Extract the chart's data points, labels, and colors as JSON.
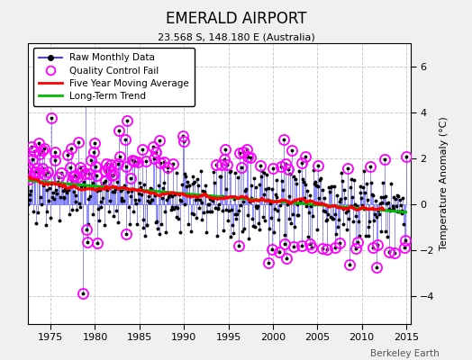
{
  "title": "EMERALD AIRPORT",
  "subtitle": "23.568 S, 148.180 E (Australia)",
  "ylabel": "Temperature Anomaly (°C)",
  "credit": "Berkeley Earth",
  "xlim": [
    1972.5,
    2015.5
  ],
  "ylim": [
    -5.2,
    7.0
  ],
  "yticks": [
    -4,
    -2,
    0,
    2,
    4,
    6
  ],
  "xticks": [
    1975,
    1980,
    1985,
    1990,
    1995,
    2000,
    2005,
    2010,
    2015
  ],
  "bg_color": "#f0f0f0",
  "plot_bg": "#ffffff",
  "raw_color": "#4444ff",
  "qc_color": "#ff00ff",
  "moving_avg_color": "#ff0000",
  "trend_color": "#00bb00",
  "seed": 137
}
